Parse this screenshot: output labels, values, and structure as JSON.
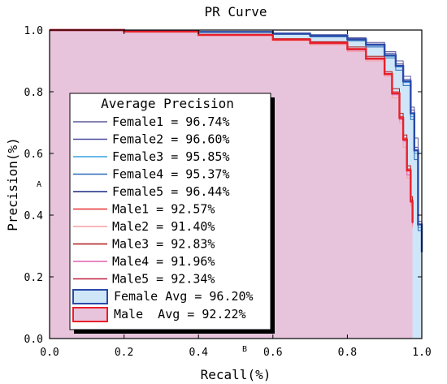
{
  "chart_data": {
    "type": "line",
    "title": "PR Curve",
    "xlabel": "Recall(%)",
    "ylabel": "Precision(%)",
    "xlim": [
      0.0,
      1.0
    ],
    "ylim": [
      0.0,
      1.0
    ],
    "xticks": [
      "0.0",
      "0.2",
      "0.4",
      "0.6",
      "0.8",
      "1.0"
    ],
    "yticks": [
      "0.0",
      "0.2",
      "0.4",
      "0.6",
      "0.8",
      "1.0"
    ],
    "grid": false,
    "legend_title": "Average Precision",
    "legend_position": "inside-left",
    "stray_labels": [
      "A",
      "B"
    ],
    "series": [
      {
        "name": "Female1",
        "legend": "Female1 = 96.74%",
        "color": "#5a5a9a",
        "x": [
          0,
          0.2,
          0.4,
          0.6,
          0.7,
          0.8,
          0.85,
          0.9,
          0.93,
          0.95,
          0.97,
          0.98,
          0.99,
          1.0
        ],
        "y": [
          1.0,
          0.998,
          0.995,
          0.99,
          0.985,
          0.975,
          0.96,
          0.93,
          0.9,
          0.85,
          0.75,
          0.65,
          0.4,
          0.3
        ]
      },
      {
        "name": "Female2",
        "legend": "Female2 = 96.60%",
        "color": "#4a4aa0",
        "x": [
          0,
          0.2,
          0.4,
          0.6,
          0.7,
          0.8,
          0.85,
          0.9,
          0.93,
          0.95,
          0.97,
          0.98,
          0.99,
          1.0
        ],
        "y": [
          1.0,
          0.998,
          0.994,
          0.99,
          0.984,
          0.972,
          0.955,
          0.925,
          0.89,
          0.84,
          0.74,
          0.62,
          0.38,
          0.3
        ]
      },
      {
        "name": "Female3",
        "legend": "Female3 = 95.85%",
        "color": "#3aa0e0",
        "x": [
          0,
          0.2,
          0.4,
          0.6,
          0.7,
          0.8,
          0.85,
          0.9,
          0.93,
          0.95,
          0.97,
          0.98,
          0.99,
          1.0
        ],
        "y": [
          1.0,
          0.997,
          0.993,
          0.988,
          0.98,
          0.968,
          0.95,
          0.915,
          0.88,
          0.83,
          0.72,
          0.6,
          0.36,
          0.3
        ]
      },
      {
        "name": "Female4",
        "legend": "Female4 = 95.37%",
        "color": "#2a6ab8",
        "x": [
          0,
          0.2,
          0.4,
          0.6,
          0.7,
          0.8,
          0.85,
          0.9,
          0.93,
          0.95,
          0.97,
          0.98,
          0.99,
          1.0
        ],
        "y": [
          1.0,
          0.997,
          0.992,
          0.986,
          0.978,
          0.965,
          0.945,
          0.91,
          0.87,
          0.82,
          0.71,
          0.58,
          0.35,
          0.3
        ]
      },
      {
        "name": "Female5",
        "legend": "Female5 = 96.44%",
        "color": "#1a2a80",
        "x": [
          0,
          0.2,
          0.4,
          0.6,
          0.7,
          0.8,
          0.85,
          0.9,
          0.93,
          0.95,
          0.97,
          0.98,
          0.99,
          1.0
        ],
        "y": [
          1.0,
          0.998,
          0.994,
          0.989,
          0.983,
          0.97,
          0.953,
          0.92,
          0.885,
          0.835,
          0.73,
          0.61,
          0.37,
          0.3
        ]
      },
      {
        "name": "Male1",
        "legend": "Male1 = 92.57%",
        "color": "#e83030",
        "x": [
          0,
          0.2,
          0.4,
          0.6,
          0.7,
          0.8,
          0.85,
          0.9,
          0.92,
          0.94,
          0.95,
          0.96,
          0.97,
          0.975
        ],
        "y": [
          1.0,
          0.995,
          0.985,
          0.97,
          0.96,
          0.94,
          0.91,
          0.86,
          0.8,
          0.72,
          0.65,
          0.55,
          0.45,
          0.38
        ]
      },
      {
        "name": "Male2",
        "legend": "Male2 = 91.40%",
        "color": "#f5a0a0",
        "x": [
          0,
          0.2,
          0.4,
          0.6,
          0.7,
          0.8,
          0.85,
          0.9,
          0.92,
          0.94,
          0.95,
          0.96,
          0.97,
          0.975
        ],
        "y": [
          1.0,
          0.994,
          0.982,
          0.965,
          0.952,
          0.93,
          0.9,
          0.85,
          0.78,
          0.7,
          0.62,
          0.52,
          0.43,
          0.36
        ]
      },
      {
        "name": "Male3",
        "legend": "Male3 = 92.83%",
        "color": "#b01818",
        "x": [
          0,
          0.2,
          0.4,
          0.6,
          0.7,
          0.8,
          0.85,
          0.9,
          0.92,
          0.94,
          0.95,
          0.96,
          0.97,
          0.975
        ],
        "y": [
          1.0,
          0.996,
          0.986,
          0.972,
          0.962,
          0.945,
          0.915,
          0.865,
          0.81,
          0.73,
          0.66,
          0.56,
          0.46,
          0.39
        ]
      },
      {
        "name": "Male4",
        "legend": "Male4 = 91.96%",
        "color": "#e060b0",
        "x": [
          0,
          0.2,
          0.4,
          0.6,
          0.7,
          0.8,
          0.85,
          0.9,
          0.92,
          0.94,
          0.95,
          0.96,
          0.97,
          0.975
        ],
        "y": [
          1.0,
          0.995,
          0.984,
          0.968,
          0.956,
          0.935,
          0.905,
          0.855,
          0.79,
          0.71,
          0.64,
          0.53,
          0.44,
          0.37
        ]
      },
      {
        "name": "Male5",
        "legend": "Male5 = 92.34%",
        "color": "#c02040",
        "x": [
          0,
          0.2,
          0.4,
          0.6,
          0.7,
          0.8,
          0.85,
          0.9,
          0.92,
          0.94,
          0.95,
          0.96,
          0.97,
          0.975
        ],
        "y": [
          1.0,
          0.995,
          0.985,
          0.97,
          0.958,
          0.938,
          0.908,
          0.858,
          0.795,
          0.715,
          0.645,
          0.545,
          0.445,
          0.375
        ]
      },
      {
        "name": "Female Avg",
        "legend": "Female Avg = 96.20%",
        "color": "#2a4aa8",
        "fill": "#cfe6f8",
        "emphasis": true,
        "x": [
          0,
          0.2,
          0.4,
          0.6,
          0.7,
          0.8,
          0.85,
          0.9,
          0.93,
          0.95,
          0.97,
          0.98,
          0.99,
          1.0
        ],
        "y": [
          1.0,
          0.997,
          0.994,
          0.988,
          0.982,
          0.97,
          0.952,
          0.918,
          0.884,
          0.834,
          0.73,
          0.61,
          0.37,
          0.28
        ]
      },
      {
        "name": "Male Avg",
        "legend": "Male  Avg = 92.22%",
        "color": "#e8202a",
        "fill": "#e8c4dc",
        "emphasis": true,
        "x": [
          0,
          0.2,
          0.4,
          0.6,
          0.7,
          0.8,
          0.85,
          0.9,
          0.92,
          0.94,
          0.95,
          0.96,
          0.97,
          0.975
        ],
        "y": [
          1.0,
          0.995,
          0.984,
          0.969,
          0.958,
          0.938,
          0.907,
          0.857,
          0.795,
          0.715,
          0.645,
          0.545,
          0.445,
          0.375
        ]
      }
    ]
  }
}
